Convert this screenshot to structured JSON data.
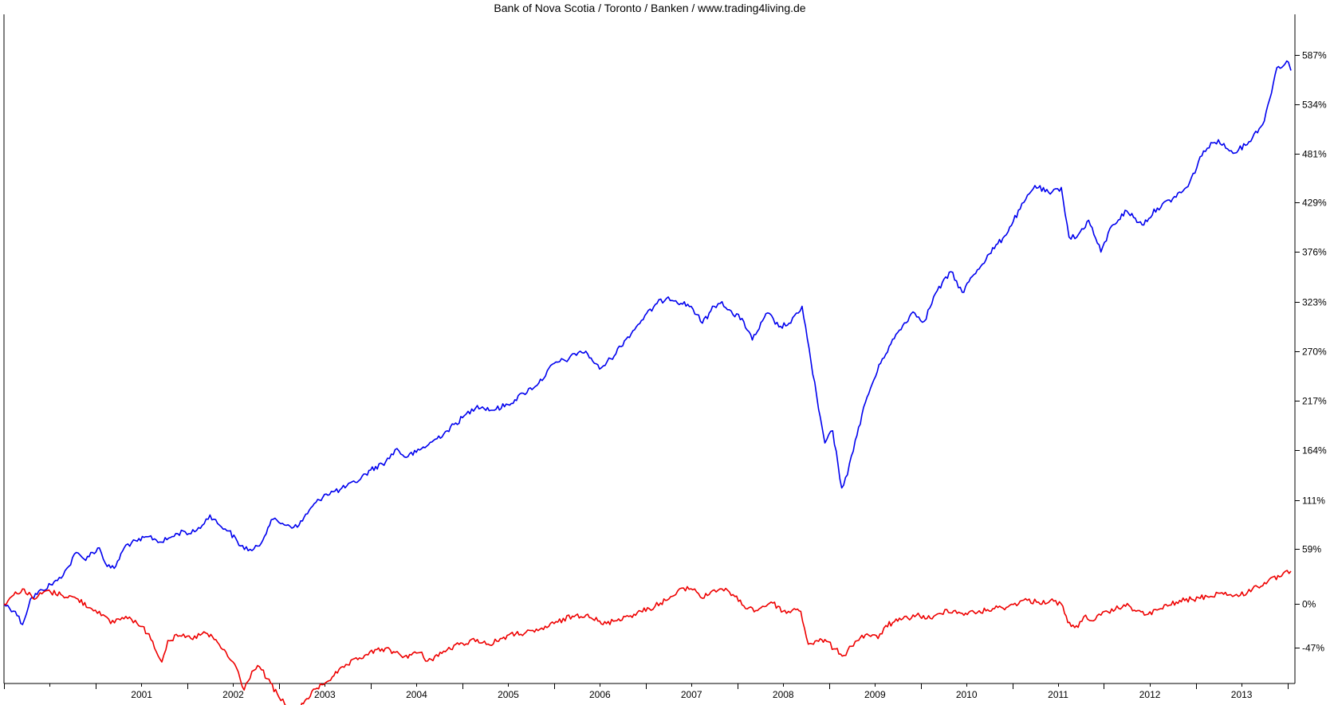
{
  "chart_data": {
    "type": "line",
    "title": "Bank of Nova Scotia / Toronto / Banken / www.trading4living.de",
    "xlabel": "",
    "ylabel": "",
    "y_axis_position": "right",
    "y_unit": "%",
    "ylim": [
      -85,
      630
    ],
    "y_ticks": [
      587,
      534,
      481,
      429,
      376,
      323,
      270,
      217,
      164,
      111,
      59,
      0,
      -47
    ],
    "y_tick_labels": [
      "587%",
      "534%",
      "481%",
      "429%",
      "376%",
      "323%",
      "270%",
      "217%",
      "164%",
      "111%",
      "59%",
      "0%",
      "-47%"
    ],
    "xlim": [
      "2000-01-01",
      "2014-01-31"
    ],
    "x_tick_labels": [
      "2001",
      "2002",
      "2003",
      "2004",
      "2005",
      "2006",
      "2007",
      "2008",
      "2009",
      "2010",
      "2011",
      "2012",
      "2013"
    ],
    "grid": false,
    "legend": "none",
    "series": [
      {
        "color": "#0000ee",
        "points": [
          [
            "2000-01-01",
            0
          ],
          [
            "2000-02-15",
            -8
          ],
          [
            "2000-03-15",
            -22
          ],
          [
            "2000-04-15",
            5
          ],
          [
            "2000-06-01",
            15
          ],
          [
            "2000-08-01",
            25
          ],
          [
            "2000-09-15",
            40
          ],
          [
            "2000-10-15",
            55
          ],
          [
            "2000-11-15",
            48
          ],
          [
            "2001-01-15",
            60
          ],
          [
            "2001-02-15",
            40
          ],
          [
            "2001-03-15",
            38
          ],
          [
            "2001-05-01",
            63
          ],
          [
            "2001-06-15",
            67
          ],
          [
            "2001-08-01",
            72
          ],
          [
            "2001-09-20",
            66
          ],
          [
            "2001-11-01",
            72
          ],
          [
            "2001-12-15",
            78
          ],
          [
            "2002-01-15",
            75
          ],
          [
            "2002-03-01",
            84
          ],
          [
            "2002-04-01",
            95
          ],
          [
            "2002-05-01",
            86
          ],
          [
            "2002-06-15",
            78
          ],
          [
            "2002-08-01",
            62
          ],
          [
            "2002-09-15",
            57
          ],
          [
            "2002-10-15",
            62
          ],
          [
            "2002-12-01",
            90
          ],
          [
            "2003-01-15",
            86
          ],
          [
            "2003-03-15",
            82
          ],
          [
            "2003-05-01",
            100
          ],
          [
            "2003-07-01",
            117
          ],
          [
            "2003-09-01",
            122
          ],
          [
            "2003-11-01",
            130
          ],
          [
            "2004-01-01",
            143
          ],
          [
            "2004-03-01",
            152
          ],
          [
            "2004-04-15",
            166
          ],
          [
            "2004-05-15",
            157
          ],
          [
            "2004-07-01",
            162
          ],
          [
            "2004-09-01",
            173
          ],
          [
            "2004-11-01",
            185
          ],
          [
            "2005-01-01",
            199
          ],
          [
            "2005-03-01",
            212
          ],
          [
            "2005-05-01",
            207
          ],
          [
            "2005-07-01",
            213
          ],
          [
            "2005-09-01",
            225
          ],
          [
            "2005-11-01",
            236
          ],
          [
            "2006-01-01",
            257
          ],
          [
            "2006-03-01",
            262
          ],
          [
            "2006-04-15",
            270
          ],
          [
            "2006-05-15",
            267
          ],
          [
            "2006-07-01",
            251
          ],
          [
            "2006-08-15",
            262
          ],
          [
            "2006-10-15",
            283
          ],
          [
            "2006-12-15",
            303
          ],
          [
            "2007-02-15",
            321
          ],
          [
            "2007-04-01",
            328
          ],
          [
            "2007-05-01",
            324
          ],
          [
            "2007-07-01",
            318
          ],
          [
            "2007-08-15",
            300
          ],
          [
            "2007-10-01",
            318
          ],
          [
            "2007-11-01",
            323
          ],
          [
            "2007-12-15",
            309
          ],
          [
            "2008-01-20",
            305
          ],
          [
            "2008-03-01",
            282
          ],
          [
            "2008-05-01",
            311
          ],
          [
            "2008-06-15",
            296
          ],
          [
            "2008-08-01",
            300
          ],
          [
            "2008-09-15",
            318
          ],
          [
            "2008-10-20",
            260
          ],
          [
            "2008-11-20",
            208
          ],
          [
            "2008-12-15",
            172
          ],
          [
            "2009-01-15",
            185
          ],
          [
            "2009-02-20",
            124
          ],
          [
            "2009-03-15",
            138
          ],
          [
            "2009-04-15",
            175
          ],
          [
            "2009-06-01",
            221
          ],
          [
            "2009-08-01",
            262
          ],
          [
            "2009-10-01",
            290
          ],
          [
            "2009-12-01",
            312
          ],
          [
            "2010-01-15",
            302
          ],
          [
            "2010-03-01",
            332
          ],
          [
            "2010-05-01",
            355
          ],
          [
            "2010-06-15",
            333
          ],
          [
            "2010-08-01",
            352
          ],
          [
            "2010-10-01",
            374
          ],
          [
            "2010-12-01",
            393
          ],
          [
            "2011-02-01",
            422
          ],
          [
            "2011-04-01",
            447
          ],
          [
            "2011-06-01",
            438
          ],
          [
            "2011-07-15",
            445
          ],
          [
            "2011-08-15",
            392
          ],
          [
            "2011-09-15",
            392
          ],
          [
            "2011-11-01",
            410
          ],
          [
            "2011-12-20",
            376
          ],
          [
            "2012-02-01",
            404
          ],
          [
            "2012-04-01",
            420
          ],
          [
            "2012-06-01",
            405
          ],
          [
            "2012-08-01",
            423
          ],
          [
            "2012-10-01",
            433
          ],
          [
            "2012-12-01",
            446
          ],
          [
            "2013-02-01",
            484
          ],
          [
            "2013-04-01",
            496
          ],
          [
            "2013-05-15",
            484
          ],
          [
            "2013-06-20",
            485
          ],
          [
            "2013-08-01",
            494
          ],
          [
            "2013-10-01",
            516
          ],
          [
            "2013-11-20",
            573
          ],
          [
            "2014-01-05",
            579
          ],
          [
            "2014-01-15",
            570
          ]
        ]
      },
      {
        "color": "#ee0000",
        "points": [
          [
            "2000-01-01",
            0
          ],
          [
            "2000-02-01",
            8
          ],
          [
            "2000-03-15",
            16
          ],
          [
            "2000-05-01",
            5
          ],
          [
            "2000-06-15",
            14
          ],
          [
            "2000-08-15",
            10
          ],
          [
            "2000-10-15",
            6
          ],
          [
            "2000-12-15",
            -5
          ],
          [
            "2001-01-15",
            -8
          ],
          [
            "2001-03-01",
            -21
          ],
          [
            "2001-04-01",
            -16
          ],
          [
            "2001-05-15",
            -14
          ],
          [
            "2001-06-15",
            -21
          ],
          [
            "2001-08-01",
            -32
          ],
          [
            "2001-09-21",
            -62
          ],
          [
            "2001-10-15",
            -39
          ],
          [
            "2001-12-01",
            -34
          ],
          [
            "2002-01-15",
            -37
          ],
          [
            "2002-03-15",
            -31
          ],
          [
            "2002-05-01",
            -41
          ],
          [
            "2002-07-15",
            -68
          ],
          [
            "2002-08-15",
            -92
          ],
          [
            "2002-09-15",
            -72
          ],
          [
            "2002-10-15",
            -67
          ],
          [
            "2002-11-15",
            -80
          ],
          [
            "2003-01-01",
            -100
          ],
          [
            "2003-02-15",
            -113
          ],
          [
            "2003-03-12",
            -118
          ],
          [
            "2003-04-15",
            -103
          ],
          [
            "2003-06-01",
            -90
          ],
          [
            "2003-08-01",
            -78
          ],
          [
            "2003-10-01",
            -65
          ],
          [
            "2003-12-15",
            -54
          ],
          [
            "2004-02-15",
            -48
          ],
          [
            "2004-04-01",
            -51
          ],
          [
            "2004-05-15",
            -56
          ],
          [
            "2004-07-15",
            -52
          ],
          [
            "2004-08-15",
            -61
          ],
          [
            "2004-11-01",
            -49
          ],
          [
            "2005-01-01",
            -42
          ],
          [
            "2005-03-01",
            -38
          ],
          [
            "2005-04-20",
            -44
          ],
          [
            "2005-06-01",
            -37
          ],
          [
            "2005-08-01",
            -32
          ],
          [
            "2005-10-15",
            -30
          ],
          [
            "2006-01-01",
            -21
          ],
          [
            "2006-03-15",
            -13
          ],
          [
            "2006-05-15",
            -11
          ],
          [
            "2006-07-15",
            -22
          ],
          [
            "2006-09-15",
            -16
          ],
          [
            "2006-11-15",
            -11
          ],
          [
            "2007-01-15",
            -5
          ],
          [
            "2007-03-01",
            1
          ],
          [
            "2007-05-01",
            10
          ],
          [
            "2007-06-01",
            17
          ],
          [
            "2007-07-15",
            16
          ],
          [
            "2007-08-15",
            6
          ],
          [
            "2007-10-01",
            15
          ],
          [
            "2007-11-01",
            16
          ],
          [
            "2007-12-15",
            10
          ],
          [
            "2008-01-20",
            -1
          ],
          [
            "2008-03-15",
            -7
          ],
          [
            "2008-05-15",
            2
          ],
          [
            "2008-07-15",
            -10
          ],
          [
            "2008-08-15",
            -5
          ],
          [
            "2008-09-10",
            -8
          ],
          [
            "2008-10-10",
            -43
          ],
          [
            "2008-11-20",
            -40
          ],
          [
            "2008-12-15",
            -38
          ],
          [
            "2009-01-20",
            -48
          ],
          [
            "2009-03-01",
            -55
          ],
          [
            "2009-04-15",
            -40
          ],
          [
            "2009-06-01",
            -32
          ],
          [
            "2009-07-15",
            -37
          ],
          [
            "2009-08-15",
            -23
          ],
          [
            "2009-10-15",
            -17
          ],
          [
            "2009-12-15",
            -12
          ],
          [
            "2010-02-15",
            -16
          ],
          [
            "2010-04-15",
            -6
          ],
          [
            "2010-06-15",
            -10
          ],
          [
            "2010-08-15",
            -9
          ],
          [
            "2010-10-15",
            -5
          ],
          [
            "2010-12-15",
            -3
          ],
          [
            "2011-02-15",
            4
          ],
          [
            "2011-04-15",
            2
          ],
          [
            "2011-06-15",
            3
          ],
          [
            "2011-07-15",
            0
          ],
          [
            "2011-08-10",
            -20
          ],
          [
            "2011-09-20",
            -25
          ],
          [
            "2011-10-20",
            -12
          ],
          [
            "2011-11-20",
            -18
          ],
          [
            "2011-12-20",
            -12
          ],
          [
            "2012-02-15",
            -6
          ],
          [
            "2012-03-20",
            -1
          ],
          [
            "2012-05-15",
            -7
          ],
          [
            "2012-06-10",
            -12
          ],
          [
            "2012-08-15",
            -5
          ],
          [
            "2012-10-15",
            2
          ],
          [
            "2012-12-15",
            5
          ],
          [
            "2013-02-15",
            8
          ],
          [
            "2013-04-15",
            12
          ],
          [
            "2013-05-20",
            10
          ],
          [
            "2013-06-20",
            8
          ],
          [
            "2013-08-15",
            16
          ],
          [
            "2013-10-15",
            24
          ],
          [
            "2013-12-01",
            29
          ],
          [
            "2014-01-15",
            35
          ]
        ]
      }
    ]
  }
}
